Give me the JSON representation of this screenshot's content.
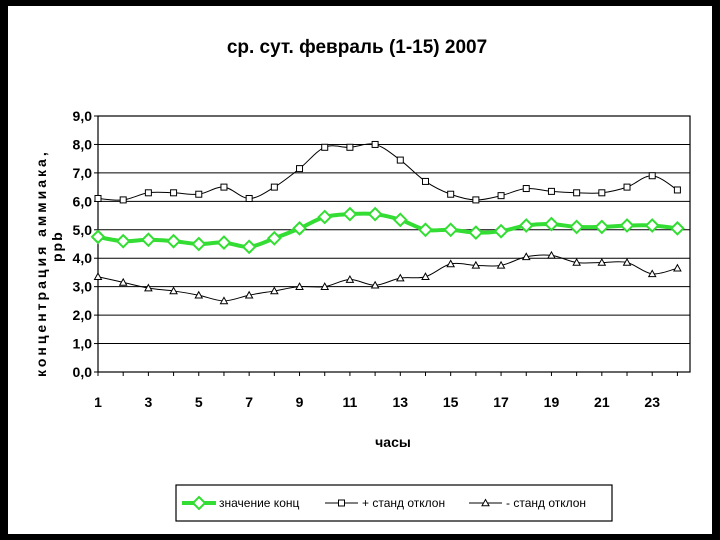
{
  "chart_data": {
    "type": "line",
    "title": "ср. сут. февраль (1-15) 2007",
    "xlabel": "часы",
    "ylabel_line1": "концентрация аммиака,",
    "ylabel_line2": "ppb",
    "x": [
      1,
      2,
      3,
      4,
      5,
      6,
      7,
      8,
      9,
      10,
      11,
      12,
      13,
      14,
      15,
      16,
      17,
      18,
      19,
      20,
      21,
      22,
      23,
      24
    ],
    "x_tick_labels": [
      "1",
      "3",
      "5",
      "7",
      "9",
      "11",
      "13",
      "15",
      "17",
      "19",
      "21",
      "23"
    ],
    "x_tick_values": [
      1,
      3,
      5,
      7,
      9,
      11,
      13,
      15,
      17,
      19,
      21,
      23
    ],
    "y_tick_labels": [
      "0,0",
      "1,0",
      "2,0",
      "3,0",
      "4,0",
      "5,0",
      "6,0",
      "7,0",
      "8,0",
      "9,0"
    ],
    "ylim": [
      0,
      9
    ],
    "grid": "horizontal",
    "legend_position": "bottom",
    "series": [
      {
        "name": "значение конц",
        "color": "#33dd33",
        "marker": "diamond",
        "values": [
          4.75,
          4.6,
          4.65,
          4.6,
          4.5,
          4.55,
          4.4,
          4.7,
          5.05,
          5.45,
          5.55,
          5.55,
          5.35,
          5.0,
          5.0,
          4.9,
          4.95,
          5.15,
          5.2,
          5.1,
          5.1,
          5.15,
          5.15,
          5.05
        ]
      },
      {
        "name": "+ станд отклон",
        "color": "#000000",
        "marker": "square",
        "values": [
          6.1,
          6.05,
          6.3,
          6.3,
          6.25,
          6.5,
          6.1,
          6.5,
          7.15,
          7.9,
          7.9,
          8.0,
          7.45,
          6.7,
          6.25,
          6.05,
          6.2,
          6.45,
          6.35,
          6.3,
          6.3,
          6.5,
          6.9,
          6.4
        ]
      },
      {
        "name": "- станд отклон",
        "color": "#000000",
        "marker": "triangle",
        "values": [
          3.35,
          3.15,
          2.95,
          2.85,
          2.7,
          2.5,
          2.7,
          2.85,
          3.0,
          3.0,
          3.25,
          3.05,
          3.3,
          3.35,
          3.8,
          3.75,
          3.75,
          4.05,
          4.1,
          3.85,
          3.85,
          3.85,
          3.45,
          3.65
        ]
      }
    ]
  }
}
